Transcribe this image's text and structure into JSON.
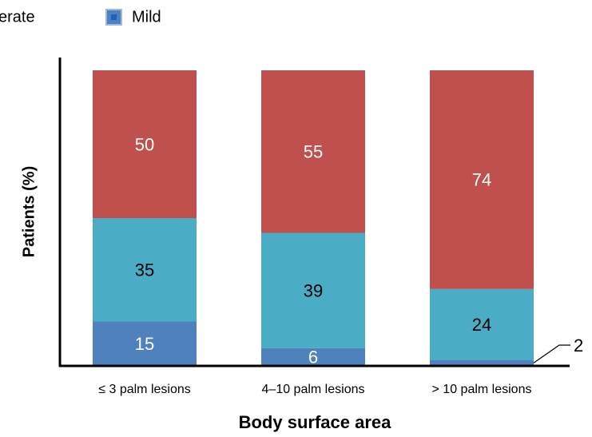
{
  "chart_data": {
    "type": "stacked_bar",
    "x_label": "Body surface area",
    "y_label": "Patients (%)",
    "categories": [
      "≤ 3 palm lesions",
      "4–10 palm lesions",
      "> 10 palm lesions"
    ],
    "series": [
      {
        "name": "Mild",
        "color": "#4f81bd",
        "values": [
          15,
          6,
          2
        ]
      },
      {
        "name": "erate",
        "color": "#4bacc6",
        "values": [
          35,
          39,
          24
        ]
      },
      {
        "color": "#c0504d",
        "values": [
          50,
          55,
          74
        ]
      }
    ],
    "ylim": [
      0,
      100
    ]
  }
}
